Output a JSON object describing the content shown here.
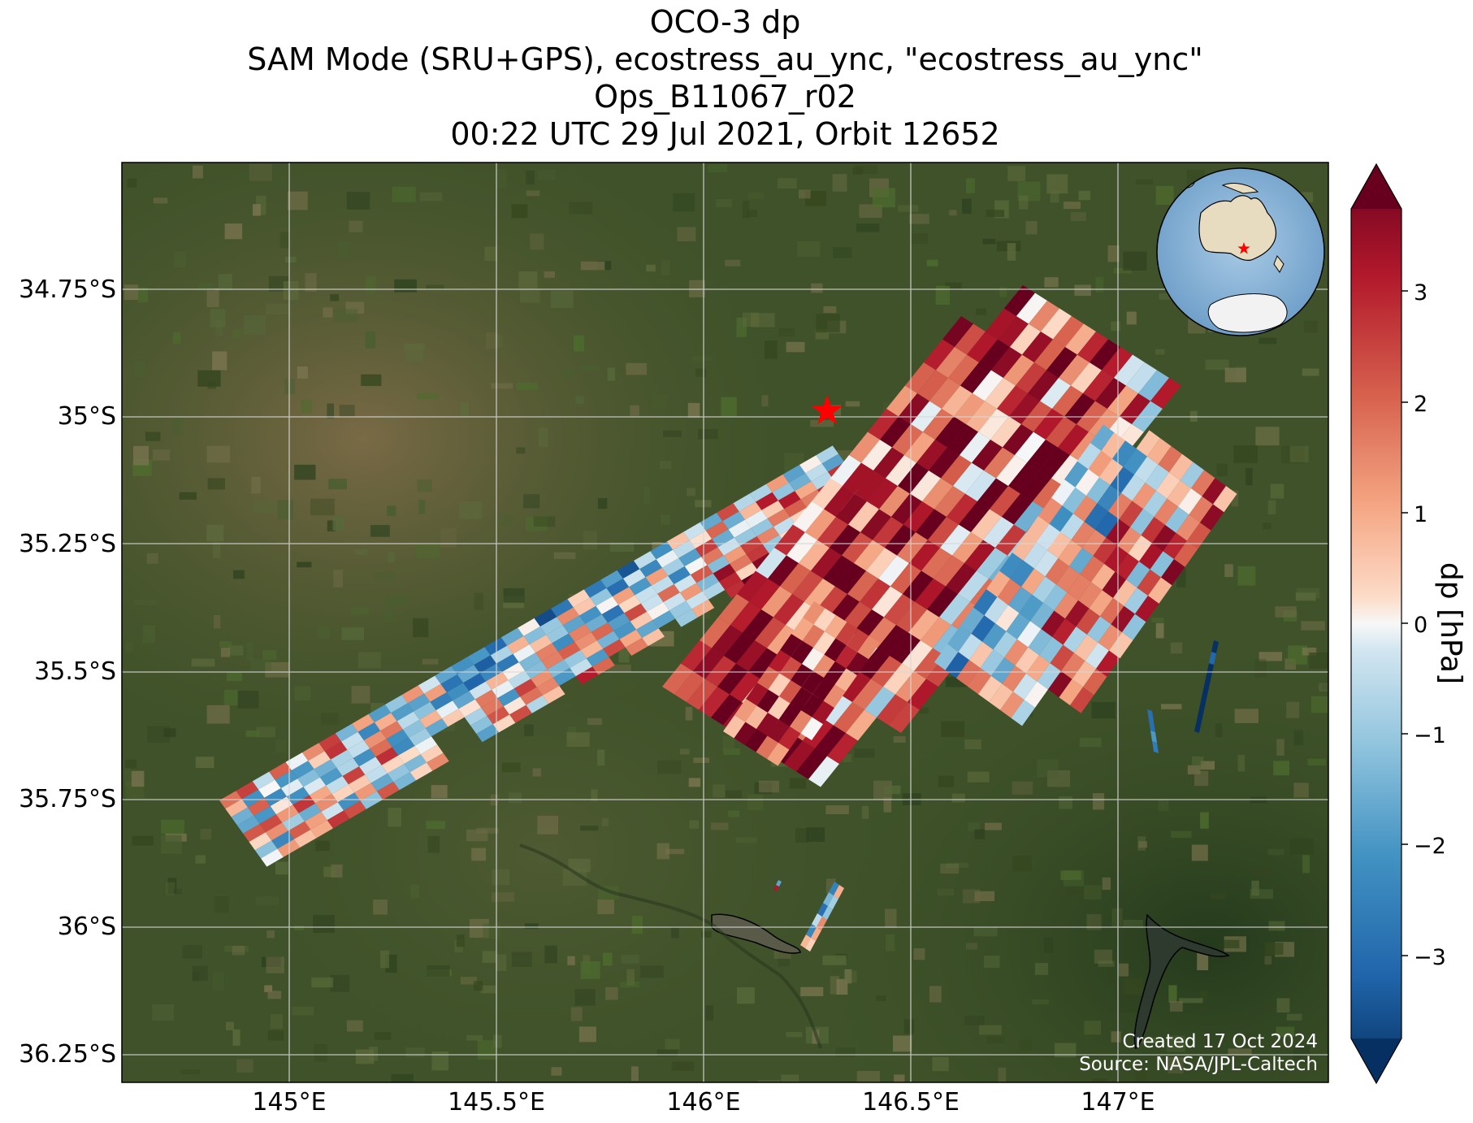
{
  "title": {
    "line1": "OCO-3 dp",
    "line2": "SAM Mode (SRU+GPS), ecostress_au_ync, \"ecostress_au_ync\"",
    "line3": "Ops_B11067_r02",
    "line4": "00:22 UTC 29 Jul 2021, Orbit 12652"
  },
  "map": {
    "lat_ticks": [
      "34.75°S",
      "35°S",
      "35.25°S",
      "35.5°S",
      "35.75°S",
      "36°S",
      "36.25°S"
    ],
    "lon_ticks": [
      "145°E",
      "145.5°E",
      "146°E",
      "146.5°E",
      "147°E"
    ],
    "target_marker": "red-star",
    "inset": "globe-australia"
  },
  "colorbar": {
    "label": "dp [hPa]",
    "ticks": [
      "3",
      "2",
      "1",
      "0",
      "−1",
      "−2",
      "−3"
    ],
    "colormap": "RdBu_r"
  },
  "credits": {
    "created": "Created 17 Oct 2024",
    "source": "Source: NASA/JPL-Caltech"
  },
  "colors": {
    "high": "#67001f",
    "mid": "#f7f7f7",
    "low": "#053061",
    "marker": "#ff0000",
    "land": "#3d5128"
  }
}
